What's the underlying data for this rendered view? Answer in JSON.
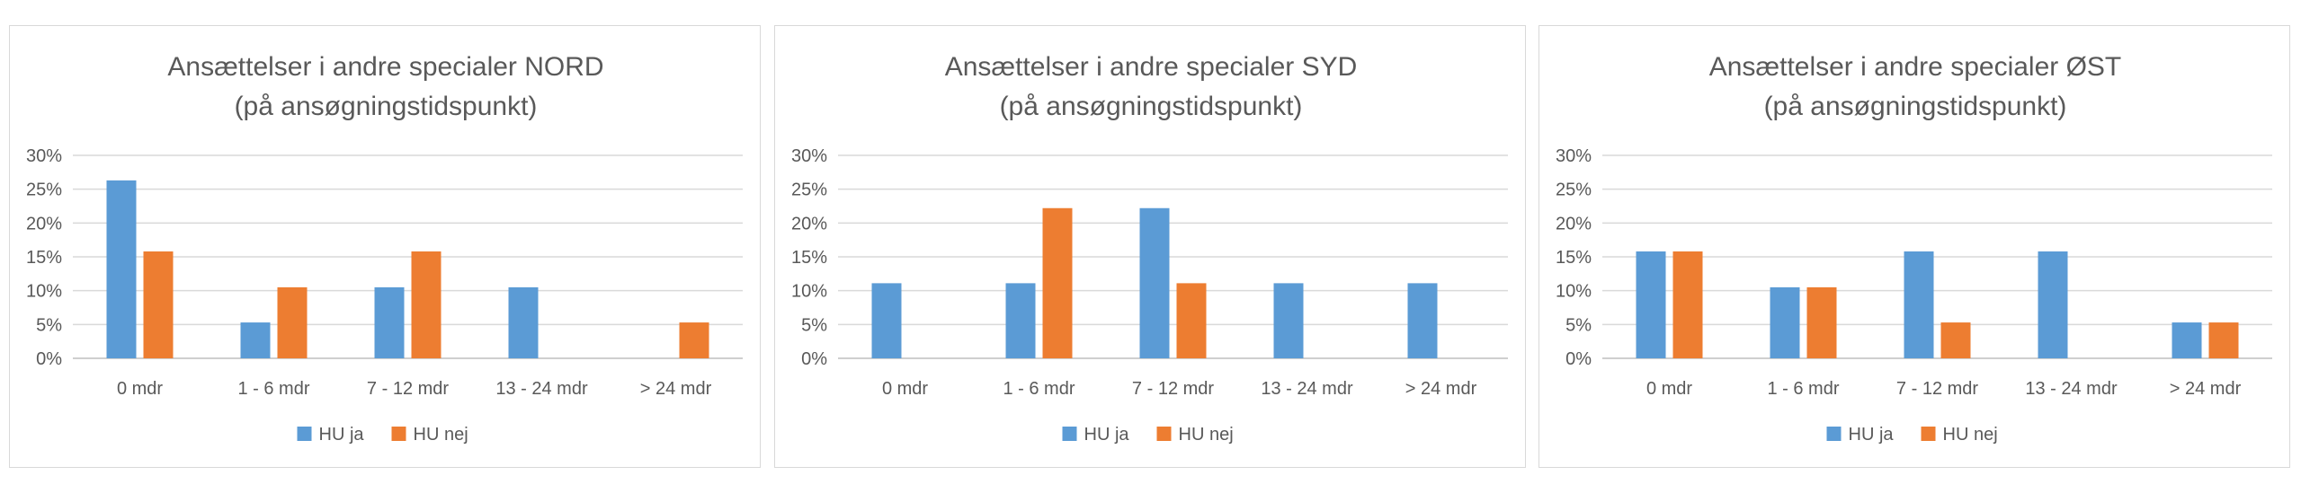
{
  "chart_data": [
    {
      "type": "bar",
      "title_line1": "Ansættelser i andre specialer NORD",
      "title_line2": "(på ansøgningstidspunkt)",
      "categories": [
        "0 mdr",
        "1 - 6 mdr",
        "7 - 12 mdr",
        "13 - 24 mdr",
        "> 24 mdr"
      ],
      "series": [
        {
          "name": "HU ja",
          "color": "#5b9bd5",
          "values": [
            26.3,
            5.3,
            10.5,
            10.5,
            0
          ]
        },
        {
          "name": "HU nej",
          "color": "#ed7d31",
          "values": [
            15.8,
            10.5,
            15.8,
            0,
            5.3
          ]
        }
      ],
      "yticks": [
        "0%",
        "5%",
        "10%",
        "15%",
        "20%",
        "25%",
        "30%"
      ],
      "ylim": [
        0,
        30
      ],
      "grid": true,
      "legend_position": "bottom"
    },
    {
      "type": "bar",
      "title_line1": "Ansættelser i andre specialer SYD",
      "title_line2": "(på ansøgningstidspunkt)",
      "categories": [
        "0 mdr",
        "1 - 6 mdr",
        "7 - 12 mdr",
        "13 - 24 mdr",
        "> 24 mdr"
      ],
      "series": [
        {
          "name": "HU ja",
          "color": "#5b9bd5",
          "values": [
            11.1,
            11.1,
            22.2,
            11.1,
            11.1
          ]
        },
        {
          "name": "HU nej",
          "color": "#ed7d31",
          "values": [
            0,
            22.2,
            11.1,
            0,
            0
          ]
        }
      ],
      "yticks": [
        "0%",
        "5%",
        "10%",
        "15%",
        "20%",
        "25%",
        "30%"
      ],
      "ylim": [
        0,
        30
      ],
      "grid": true,
      "legend_position": "bottom"
    },
    {
      "type": "bar",
      "title_line1": "Ansættelser i andre specialer ØST",
      "title_line2": "(på ansøgningstidspunkt)",
      "categories": [
        "0 mdr",
        "1 - 6 mdr",
        "7 - 12 mdr",
        "13 - 24 mdr",
        "> 24 mdr"
      ],
      "series": [
        {
          "name": "HU ja",
          "color": "#5b9bd5",
          "values": [
            15.8,
            10.5,
            15.8,
            15.8,
            5.3
          ]
        },
        {
          "name": "HU nej",
          "color": "#ed7d31",
          "values": [
            15.8,
            10.5,
            5.3,
            0,
            5.3
          ]
        }
      ],
      "yticks": [
        "0%",
        "5%",
        "10%",
        "15%",
        "20%",
        "25%",
        "30%"
      ],
      "ylim": [
        0,
        30
      ],
      "grid": true,
      "legend_position": "bottom"
    }
  ]
}
